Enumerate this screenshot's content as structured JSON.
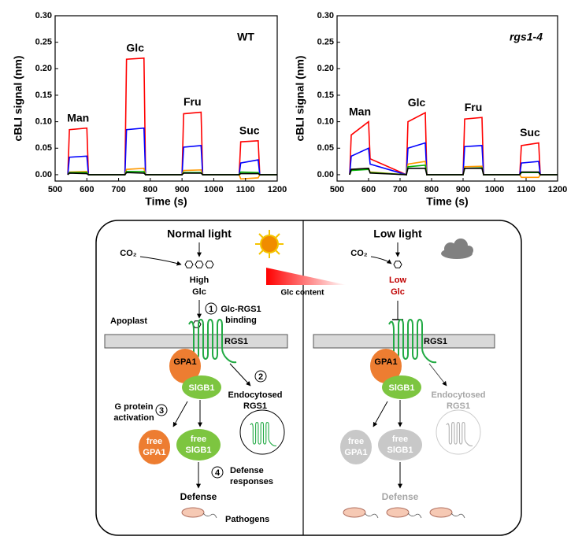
{
  "chart_data": [
    {
      "type": "line",
      "label": "WT",
      "xlabel": "Time (s)",
      "ylabel": "cBLI signal (nm)",
      "annotations": [
        "Man",
        "Glc",
        "Fru",
        "Suc"
      ],
      "x": [
        540,
        545,
        600,
        605,
        720,
        725,
        780,
        785,
        900,
        905,
        960,
        965,
        1080,
        1085,
        1140,
        1145,
        1200
      ],
      "xlim": [
        500,
        1200
      ],
      "xticks": [
        500,
        600,
        700,
        800,
        900,
        1000,
        1100,
        1200
      ],
      "ylim": [
        -0.012,
        0.3
      ],
      "yticks": [
        {
          "value": 0,
          "label": "0.00"
        },
        {
          "value": 0.05,
          "label": "0.05"
        },
        {
          "value": 0.1,
          "label": "0.10"
        },
        {
          "value": 0.15,
          "label": "0.15"
        },
        {
          "value": 0.2,
          "label": "0.20"
        },
        {
          "value": 0.25,
          "label": "0.25"
        },
        {
          "value": 0.3,
          "label": "0.30"
        }
      ],
      "series": [
        {
          "color": "#ff0000",
          "values": [
            0,
            0.085,
            0.088,
            0,
            0,
            0.218,
            0.22,
            0,
            0,
            0.115,
            0.118,
            0,
            0,
            0.062,
            0.064,
            0,
            0
          ]
        },
        {
          "color": "#0000ff",
          "values": [
            0,
            0.033,
            0.035,
            0,
            0,
            0.085,
            0.088,
            0,
            0,
            0.052,
            0.055,
            0,
            0,
            0.022,
            0.028,
            0,
            0
          ]
        },
        {
          "color": "#ff9900",
          "values": [
            0,
            0.005,
            0.006,
            0,
            0,
            0.01,
            0.012,
            0,
            0,
            0.008,
            0.009,
            0,
            0,
            -0.008,
            -0.006,
            0,
            0
          ]
        },
        {
          "color": "#00b000",
          "values": [
            0,
            0.004,
            0.004,
            0,
            0,
            0.006,
            0.006,
            0,
            0,
            0.004,
            0.004,
            0,
            0,
            0.005,
            0.004,
            0,
            0
          ]
        },
        {
          "color": "#000000",
          "values": [
            0,
            0.003,
            0.002,
            0,
            0,
            0.004,
            0.003,
            0,
            0,
            0.003,
            0.003,
            0,
            0,
            0.002,
            0.002,
            0,
            0
          ]
        }
      ]
    },
    {
      "type": "line",
      "label": "rgs1-4",
      "xlabel": "Time (s)",
      "ylabel": "cBLI signal (nm)",
      "annotations": [
        "Man",
        "Glc",
        "Fru",
        "Suc"
      ],
      "x": [
        540,
        545,
        600,
        605,
        720,
        725,
        780,
        785,
        900,
        905,
        960,
        965,
        1080,
        1085,
        1140,
        1145,
        1200
      ],
      "xlim": [
        500,
        1200
      ],
      "xticks": [
        500,
        600,
        700,
        800,
        900,
        1000,
        1100,
        1200
      ],
      "ylim": [
        -0.012,
        0.3
      ],
      "yticks": [
        {
          "value": 0,
          "label": "0.00"
        },
        {
          "value": 0.05,
          "label": "0.05"
        },
        {
          "value": 0.1,
          "label": "0.10"
        },
        {
          "value": 0.15,
          "label": "0.15"
        },
        {
          "value": 0.2,
          "label": "0.20"
        },
        {
          "value": 0.25,
          "label": "0.25"
        },
        {
          "value": 0.3,
          "label": "0.30"
        }
      ],
      "series": [
        {
          "color": "#ff0000",
          "values": [
            0,
            0.075,
            0.1,
            0.03,
            0,
            0.1,
            0.117,
            0,
            0,
            0.105,
            0.108,
            0,
            0,
            0.055,
            0.06,
            0,
            0
          ]
        },
        {
          "color": "#0000ff",
          "values": [
            0,
            0.035,
            0.05,
            0.02,
            0,
            0.05,
            0.06,
            0,
            0,
            0.053,
            0.055,
            0,
            0,
            0.022,
            0.025,
            0,
            0
          ]
        },
        {
          "color": "#ff9900",
          "values": [
            0,
            0.01,
            0.012,
            0.005,
            0,
            0.02,
            0.025,
            0,
            0,
            0.015,
            0.016,
            0,
            0,
            -0.005,
            -0.005,
            0,
            0
          ]
        },
        {
          "color": "#00b000",
          "values": [
            0,
            0.008,
            0.01,
            0.004,
            0,
            0.015,
            0.018,
            0,
            0,
            0.012,
            0.013,
            0,
            0,
            0.004,
            0.004,
            0,
            0
          ]
        },
        {
          "color": "#000000",
          "values": [
            0,
            0.01,
            0.012,
            0.003,
            0,
            0.012,
            0.012,
            0,
            0,
            0.012,
            0.012,
            0,
            0,
            0.005,
            0.005,
            0,
            0
          ]
        }
      ]
    }
  ],
  "diagram": {
    "left": {
      "title": "Normal light",
      "co2": "CO₂",
      "glc": [
        "High",
        "Glc"
      ],
      "step1": "1",
      "step1_text": [
        "Glc-RGS1",
        "binding"
      ],
      "apoplast": "Apoplast",
      "rgs1": "RGS1",
      "gpa1": "GPA1",
      "slgb1": "SlGB1",
      "step2": "2",
      "endocytosed": [
        "Endocytosed",
        "RGS1"
      ],
      "step3": "3",
      "activation": [
        "G protein",
        "activation"
      ],
      "free_gpa1": [
        "free",
        "GPA1"
      ],
      "free_slgb1": [
        "free",
        "SlGB1"
      ],
      "step4": "4",
      "responses": [
        "Defense",
        "responses"
      ],
      "defense": "Defense",
      "pathogens": "Pathogens"
    },
    "right": {
      "title": "Low light",
      "co2": "CO₂",
      "glc": [
        "Low",
        "Glc"
      ],
      "rgs1": "RGS1",
      "gpa1": "GPA1",
      "slgb1": "SlGB1",
      "endocytosed": [
        "Endocytosed",
        "RGS1"
      ],
      "free_gpa1": [
        "free",
        "GPA1"
      ],
      "free_slgb1": [
        "free",
        "SlGB1"
      ],
      "defense": "Defense"
    },
    "glc_content": "Glc content"
  }
}
